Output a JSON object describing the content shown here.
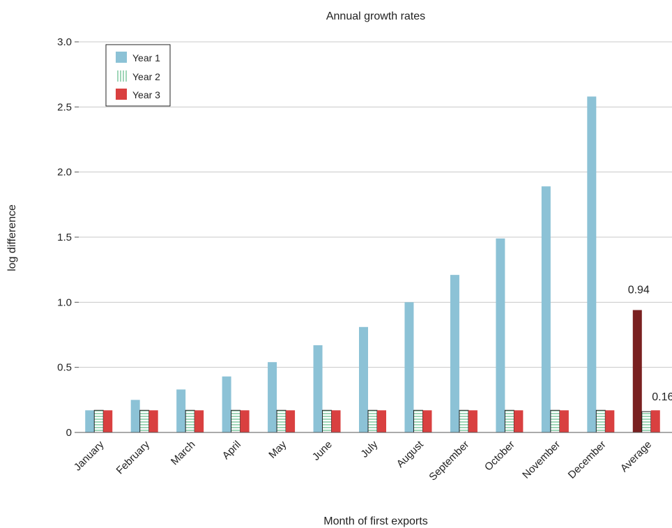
{
  "chart_data": {
    "type": "bar",
    "title": "Annual growth rates",
    "xlabel": "Month of first exports",
    "ylabel": "log difference",
    "ylim": [
      0,
      3.0
    ],
    "yticks": [
      {
        "value": 0,
        "label": "0"
      },
      {
        "value": 0.5,
        "label": "0.5"
      },
      {
        "value": 1.0,
        "label": "1.0"
      },
      {
        "value": 1.5,
        "label": "1.5"
      },
      {
        "value": 2.0,
        "label": "2.0"
      },
      {
        "value": 2.5,
        "label": "2.5"
      },
      {
        "value": 3.0,
        "label": "3.0"
      }
    ],
    "grid": true,
    "legend_position": "top-left",
    "categories": [
      "January",
      "February",
      "March",
      "April",
      "May",
      "June",
      "July",
      "August",
      "September",
      "October",
      "November",
      "December",
      "Average"
    ],
    "series": [
      {
        "name": "Year 1",
        "color": "#8cc2d6",
        "highlight_color": "#7a2020",
        "pattern": "solid",
        "values": [
          0.17,
          0.25,
          0.33,
          0.43,
          0.54,
          0.67,
          0.81,
          1.0,
          1.21,
          1.49,
          1.89,
          2.58,
          0.94
        ]
      },
      {
        "name": "Year 2",
        "color": "#9fd6b8",
        "pattern": "striped",
        "values": [
          0.17,
          0.17,
          0.17,
          0.17,
          0.17,
          0.17,
          0.17,
          0.17,
          0.17,
          0.17,
          0.17,
          0.17,
          0.16
        ]
      },
      {
        "name": "Year 3",
        "color": "#d94040",
        "pattern": "solid",
        "values": [
          0.17,
          0.17,
          0.17,
          0.17,
          0.17,
          0.17,
          0.17,
          0.17,
          0.17,
          0.17,
          0.17,
          0.17,
          0.17
        ]
      }
    ],
    "annotations": [
      {
        "category": "Average",
        "series": "Year 1",
        "text": "0.94"
      },
      {
        "category": "Average",
        "series": "Year 2",
        "text": "0.16"
      }
    ]
  }
}
